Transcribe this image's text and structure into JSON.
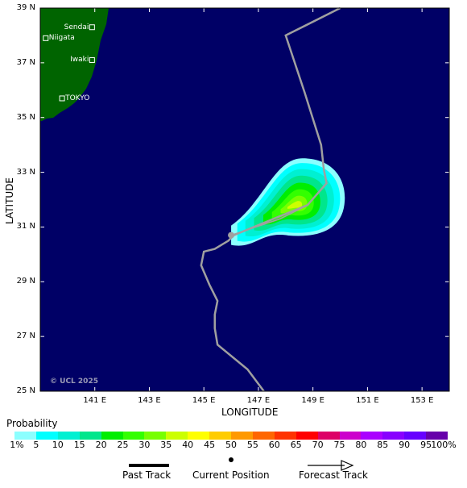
{
  "axes": {
    "x_title": "LONGITUDE",
    "y_title": "LATITUDE",
    "x_ticks": [
      "141 E",
      "143 E",
      "145 E",
      "147 E",
      "149 E",
      "151 E",
      "153 E"
    ],
    "y_ticks": [
      "39 N",
      "37 N",
      "35 N",
      "33 N",
      "31 N",
      "29 N",
      "27 N",
      "25 N"
    ],
    "lon_range": [
      139,
      154
    ],
    "lat_range": [
      25,
      39
    ]
  },
  "cities": [
    {
      "name": "Sendai",
      "lon": 140.9,
      "lat": 38.3
    },
    {
      "name": "Niigata",
      "lon": 139.2,
      "lat": 37.9
    },
    {
      "name": "Iwaki",
      "lon": 140.9,
      "lat": 37.1
    },
    {
      "name": "TOKYO",
      "lon": 139.8,
      "lat": 35.7
    }
  ],
  "copyright": "© UCL 2025",
  "track": [
    {
      "lon": 147.2,
      "lat": 25.0
    },
    {
      "lon": 146.6,
      "lat": 25.8
    },
    {
      "lon": 145.5,
      "lat": 26.7
    },
    {
      "lon": 145.4,
      "lat": 27.3
    },
    {
      "lon": 145.4,
      "lat": 27.8
    },
    {
      "lon": 145.5,
      "lat": 28.3
    },
    {
      "lon": 145.2,
      "lat": 28.9
    },
    {
      "lon": 144.9,
      "lat": 29.6
    },
    {
      "lon": 145.0,
      "lat": 30.1
    },
    {
      "lon": 145.4,
      "lat": 30.2
    },
    {
      "lon": 145.9,
      "lat": 30.5
    },
    {
      "lon": 146.1,
      "lat": 30.7
    },
    {
      "lon": 147.8,
      "lat": 31.4
    },
    {
      "lon": 148.8,
      "lat": 31.8
    },
    {
      "lon": 149.5,
      "lat": 32.6
    },
    {
      "lon": 149.4,
      "lat": 33.1
    },
    {
      "lon": 149.3,
      "lat": 34.0
    },
    {
      "lon": 148.7,
      "lat": 35.9
    },
    {
      "lon": 148.0,
      "lat": 38.0
    },
    {
      "lon": 150.0,
      "lat": 39.0
    }
  ],
  "current_position": {
    "lon": 146.0,
    "lat": 30.7
  },
  "forecast_track": [
    {
      "lon": 146.0,
      "lat": 30.7
    },
    {
      "lon": 147.8,
      "lat": 31.3
    },
    {
      "lon": 148.8,
      "lat": 31.8
    },
    {
      "lon": 149.5,
      "lat": 32.6
    }
  ],
  "probability": {
    "title": "Probability",
    "labels": [
      "1%",
      "5",
      "10",
      "15",
      "20",
      "25",
      "30",
      "35",
      "40",
      "45",
      "50",
      "55",
      "60",
      "65",
      "70",
      "75",
      "80",
      "85",
      "90",
      "95",
      "100%"
    ],
    "colors": [
      "#8cffff",
      "#00ffff",
      "#00f0d2",
      "#00e68c",
      "#00ee00",
      "#33ff00",
      "#77ff00",
      "#ccff00",
      "#ffff00",
      "#ffcc00",
      "#ff9900",
      "#ff6600",
      "#ff3300",
      "#ff0000",
      "#dd0066",
      "#cc00cc",
      "#aa00ff",
      "#8800ff",
      "#6600ff",
      "#6600aa"
    ]
  },
  "legend": {
    "past_track": "Past Track",
    "current_position": "Current Position",
    "forecast_track": "Forecast Track"
  },
  "colors": {
    "ocean": "#000066",
    "land": "#006400",
    "track": "#a0a0a0"
  }
}
